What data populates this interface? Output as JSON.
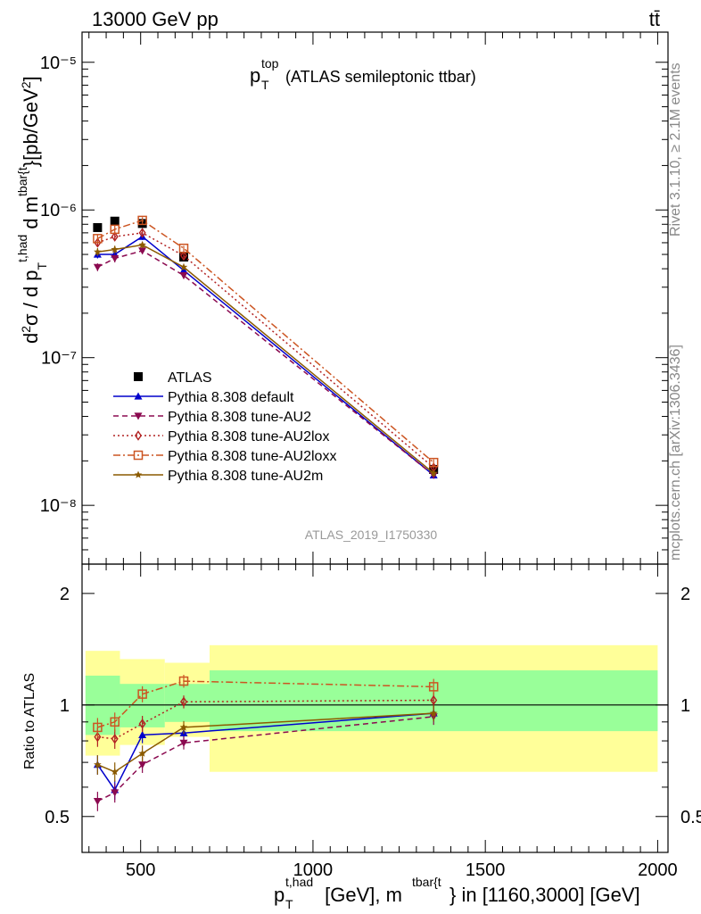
{
  "header": {
    "left": "13000 GeV pp",
    "right": "tt̄"
  },
  "side_labels": {
    "rivet": "Rivet 3.1.10, ≥ 2.1M events",
    "mcplots": "mcplots.cern.ch [arXiv:1306.3436]"
  },
  "watermark": "ATLAS_2019_I1750330",
  "chart_data": [
    {
      "type": "scatter",
      "panel": "main",
      "title_main": "p",
      "title_sup": "top",
      "title_sub": "T",
      "title_rest": "(ATLAS semileptonic ttbar)",
      "ylabel": "d²σ / d p_T^{t,had} d m^{tbar{t}} [pb/GeV²]",
      "y_scale": "log",
      "ylim": [
        4e-09,
        1.6e-05
      ],
      "xlim": [
        330,
        2030
      ],
      "y_tick_labels": [
        "10⁻⁸",
        "10⁻⁷",
        "10⁻⁶",
        "10⁻⁵"
      ],
      "legend_placement": "lower-left",
      "series": [
        {
          "name": "ATLAS",
          "color": "#000000",
          "marker": "square",
          "line": "none",
          "x": [
            375,
            425,
            505,
            625,
            1350
          ],
          "y": [
            7.6e-07,
            8.4e-07,
            8.1e-07,
            4.8e-07,
            1.75e-08
          ]
        },
        {
          "name": "Pythia 8.308 default",
          "color": "#0000cc",
          "marker": "triangle-up",
          "line": "solid",
          "x": [
            375,
            425,
            505,
            625,
            1350
          ],
          "y": [
            5e-07,
            5e-07,
            6.6e-07,
            3.9e-07,
            1.6e-08
          ],
          "err": [
            0.06,
            0.06,
            0.05,
            0.04,
            0.05
          ]
        },
        {
          "name": "Pythia 8.308 tune-AU2",
          "color": "#8b0a50",
          "marker": "triangle-down",
          "line": "dashed",
          "x": [
            375,
            425,
            505,
            625,
            1350
          ],
          "y": [
            4.1e-07,
            4.7e-07,
            5.3e-07,
            3.6e-07,
            1.6e-08
          ],
          "err": [
            0.06,
            0.06,
            0.05,
            0.04,
            0.05
          ]
        },
        {
          "name": "Pythia 8.308 tune-AU2lox",
          "color": "#b22222",
          "marker": "diamond",
          "line": "dotted",
          "x": [
            375,
            425,
            505,
            625,
            1350
          ],
          "y": [
            6e-07,
            6.6e-07,
            7e-07,
            4.9e-07,
            1.8e-08
          ],
          "err": [
            0.06,
            0.06,
            0.05,
            0.04,
            0.05
          ]
        },
        {
          "name": "Pythia 8.308 tune-AU2loxx",
          "color": "#cc5522",
          "marker": "open-square",
          "line": "dashdot",
          "x": [
            375,
            425,
            505,
            625,
            1350
          ],
          "y": [
            6.4e-07,
            7.4e-07,
            8.5e-07,
            5.5e-07,
            1.95e-08
          ],
          "err": [
            0.06,
            0.06,
            0.05,
            0.04,
            0.05
          ]
        },
        {
          "name": "Pythia 8.308 tune-AU2m",
          "color": "#8b5a00",
          "marker": "star",
          "line": "solid",
          "x": [
            375,
            425,
            505,
            625,
            1350
          ],
          "y": [
            5.2e-07,
            5.4e-07,
            5.8e-07,
            4.1e-07,
            1.65e-08
          ],
          "err": [
            0.06,
            0.06,
            0.05,
            0.04,
            0.05
          ]
        }
      ]
    },
    {
      "type": "scatter",
      "panel": "ratio",
      "ylabel": "Ratio to ATLAS",
      "xlabel_main": "p",
      "xlabel_sup1": "t,had",
      "xlabel_sub1": "T",
      "xlabel_mid": " [GeV], m",
      "xlabel_sup2": "tbar{t",
      "xlabel_end": "} in [1160,3000] [GeV]",
      "ylim": [
        0.4,
        2.4
      ],
      "xlim": [
        330,
        2030
      ],
      "x_ticks": [
        500,
        1000,
        1500,
        2000
      ],
      "x_tick_labels": [
        "500",
        "1000",
        "1500",
        "2000"
      ],
      "y_ticks": [
        0.5,
        1,
        2
      ],
      "y_tick_labels": [
        "0.5",
        "1",
        "2"
      ],
      "bands": [
        {
          "x0": 340,
          "x1": 440,
          "yellow": [
            0.73,
            1.4
          ],
          "green": [
            0.83,
            1.2
          ]
        },
        {
          "x0": 440,
          "x1": 570,
          "yellow": [
            0.78,
            1.33
          ],
          "green": [
            0.87,
            1.14
          ]
        },
        {
          "x0": 570,
          "x1": 700,
          "yellow": [
            0.82,
            1.3
          ],
          "green": [
            0.9,
            1.14
          ]
        },
        {
          "x0": 700,
          "x1": 2000,
          "yellow": [
            0.66,
            1.45
          ],
          "green": [
            0.85,
            1.24
          ]
        }
      ],
      "series": [
        {
          "name": "Pythia 8.308 default",
          "y": [
            0.69,
            0.59,
            0.83,
            0.84,
            0.95
          ]
        },
        {
          "name": "Pythia 8.308 tune-AU2",
          "y": [
            0.55,
            0.58,
            0.69,
            0.79,
            0.93
          ]
        },
        {
          "name": "Pythia 8.308 tune-AU2lox",
          "y": [
            0.82,
            0.81,
            0.89,
            1.02,
            1.03
          ]
        },
        {
          "name": "Pythia 8.308 tune-AU2loxx",
          "y": [
            0.87,
            0.9,
            1.07,
            1.16,
            1.12
          ]
        },
        {
          "name": "Pythia 8.308 tune-AU2m",
          "y": [
            0.69,
            0.66,
            0.74,
            0.87,
            0.95
          ]
        }
      ]
    }
  ]
}
